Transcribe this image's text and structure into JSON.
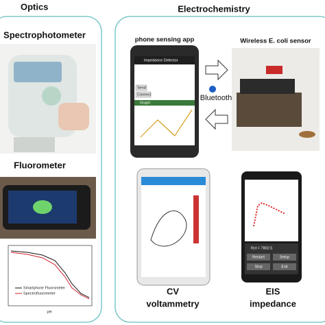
{
  "left_panel": {
    "title": "Optics",
    "spectrophotometer": "Spectrophotometer",
    "fluorometer": "Fluorometer",
    "plot": {
      "x_label": "pH",
      "legend": [
        "Smartphone Fluorometer",
        "Spectrofluorometer"
      ]
    }
  },
  "right_panel": {
    "title": "Electrochemistry",
    "app_label": "phone sensing app",
    "sensor_label": "Wireless E. coli sensor",
    "link_label": "Bluetooth",
    "app_screen": {
      "title": "Impedance Detector",
      "buttons": [
        "Send",
        "Connect"
      ],
      "graph": "Graph"
    },
    "cv_label": "CV voltammetry",
    "eis_label": "EIS impedance",
    "eis_screen": {
      "result": "Rct = 7802.5",
      "buttons": [
        "Restart",
        "Setup",
        "Stop",
        "Exit"
      ]
    }
  }
}
